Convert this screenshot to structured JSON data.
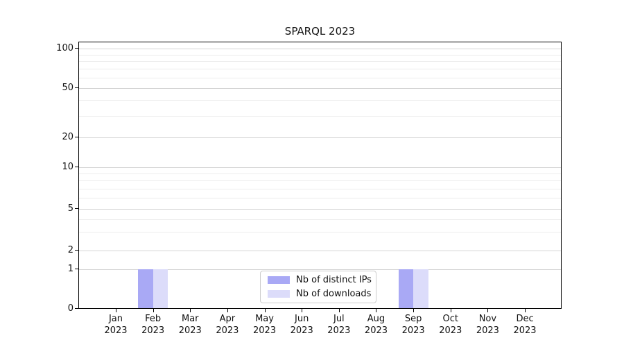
{
  "chart": {
    "title": "SPARQL 2023"
  },
  "legend": {
    "entries": [
      {
        "label": "Nb of distinct IPs",
        "color": "#a9a9f5"
      },
      {
        "label": "Nb of downloads",
        "color": "#dcdcfa"
      }
    ]
  },
  "chart_data": {
    "type": "bar",
    "title": "SPARQL 2023",
    "categories": [
      "Jan 2023",
      "Feb 2023",
      "Mar 2023",
      "Apr 2023",
      "May 2023",
      "Jun 2023",
      "Jul 2023",
      "Aug 2023",
      "Sep 2023",
      "Oct 2023",
      "Nov 2023",
      "Dec 2023"
    ],
    "series": [
      {
        "name": "Nb of distinct IPs",
        "color": "#a9a9f5",
        "values": [
          0,
          1,
          0,
          0,
          0,
          0,
          0,
          0,
          1,
          0,
          0,
          0
        ]
      },
      {
        "name": "Nb of downloads",
        "color": "#dcdcfa",
        "values": [
          0,
          1,
          0,
          0,
          0,
          0,
          0,
          0,
          1,
          0,
          0,
          0
        ]
      }
    ],
    "xlabel": "",
    "ylabel": "",
    "yscale": "symlog",
    "ylim": [
      0,
      115
    ],
    "y_ticks": [
      0,
      1,
      2,
      5,
      10,
      20,
      50,
      100
    ],
    "y_minor_gridlines": [
      3,
      4,
      6,
      7,
      8,
      9,
      30,
      40,
      60,
      70,
      80,
      90
    ],
    "grid": "horizontal, major and minor",
    "legend_position": "lower center inside axes"
  },
  "colors": {
    "bar_distinct_ips": "#a9a9f5",
    "bar_downloads": "#dcdcfa",
    "grid_major": "#d4d4d4",
    "grid_minor": "#ececec",
    "axis": "#000000",
    "legend_border": "#cccccc",
    "background": "#ffffff"
  }
}
